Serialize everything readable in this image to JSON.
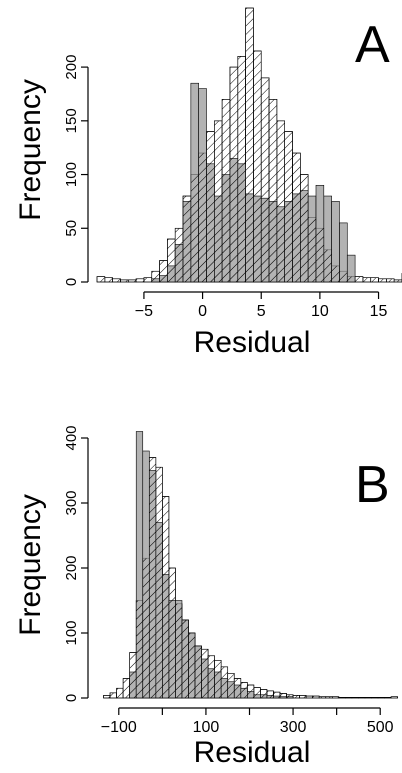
{
  "chart_data": [
    {
      "type": "bar",
      "panel_label": "A",
      "xlabel": "Residual",
      "ylabel": "Frequency",
      "xlim": [
        -9,
        17
      ],
      "ylim": [
        0,
        255
      ],
      "xticks": [
        -5,
        0,
        5,
        10,
        15
      ],
      "xtick_labels": [
        "−5",
        "0",
        "5",
        "10",
        "15"
      ],
      "yticks": [
        0,
        50,
        100,
        150,
        200
      ],
      "ytick_labels": [
        "0",
        "50",
        "100",
        "150",
        "200"
      ],
      "bin_start": -9,
      "bin_width": 0.6667,
      "series": [
        {
          "style": "hatched",
          "values": [
            5,
            4,
            3,
            2,
            2,
            3,
            4,
            10,
            20,
            40,
            50,
            80,
            100,
            120,
            140,
            150,
            170,
            200,
            210,
            255,
            215,
            190,
            170,
            150,
            140,
            120,
            100,
            60,
            50,
            30,
            15,
            10,
            5,
            5,
            4,
            4,
            3,
            3,
            2,
            8,
            5,
            3,
            4,
            3,
            2,
            6,
            4,
            4,
            3
          ]
        },
        {
          "style": "solid-gray",
          "values": [
            0,
            0,
            0,
            0,
            0,
            0,
            0,
            3,
            6,
            15,
            35,
            75,
            185,
            180,
            110,
            80,
            100,
            115,
            110,
            82,
            80,
            78,
            75,
            70,
            75,
            82,
            85,
            80,
            90,
            80,
            75,
            55,
            25,
            0,
            0,
            0,
            0,
            0,
            0,
            0,
            0,
            0,
            0,
            0,
            0,
            0,
            0,
            0,
            0
          ]
        }
      ],
      "grid": false,
      "legend": "none"
    },
    {
      "type": "bar",
      "panel_label": "B",
      "xlabel": "Residual",
      "ylabel": "Frequency",
      "xlim": [
        -150,
        550
      ],
      "ylim": [
        0,
        420
      ],
      "xticks": [
        -100,
        0,
        100,
        200,
        300,
        400,
        500
      ],
      "xtick_labels": [
        "−100",
        "",
        "100",
        "",
        "300",
        "",
        "500"
      ],
      "yticks": [
        0,
        100,
        200,
        300,
        400
      ],
      "ytick_labels": [
        "0",
        "100",
        "200",
        "300",
        "400"
      ],
      "bin_start": -150,
      "bin_width": 15,
      "series": [
        {
          "style": "hatched",
          "values": [
            0,
            4,
            8,
            15,
            30,
            70,
            150,
            215,
            370,
            355,
            310,
            200,
            145,
            120,
            100,
            80,
            75,
            65,
            58,
            48,
            38,
            30,
            24,
            20,
            16,
            13,
            11,
            9,
            7,
            5,
            4,
            4,
            3,
            3,
            2,
            2,
            2,
            1,
            1,
            1,
            1,
            1,
            1,
            1,
            1,
            2
          ]
        },
        {
          "style": "solid-gray",
          "values": [
            0,
            0,
            0,
            0,
            0,
            40,
            410,
            380,
            350,
            270,
            190,
            150,
            150,
            120,
            100,
            80,
            60,
            45,
            40,
            30,
            25,
            20,
            15,
            10,
            5,
            5,
            4,
            3,
            2,
            2,
            0,
            0,
            0,
            0,
            0,
            0,
            0,
            0,
            0,
            0,
            0,
            0,
            0,
            0,
            0,
            0
          ]
        }
      ],
      "grid": false,
      "legend": "none"
    }
  ]
}
